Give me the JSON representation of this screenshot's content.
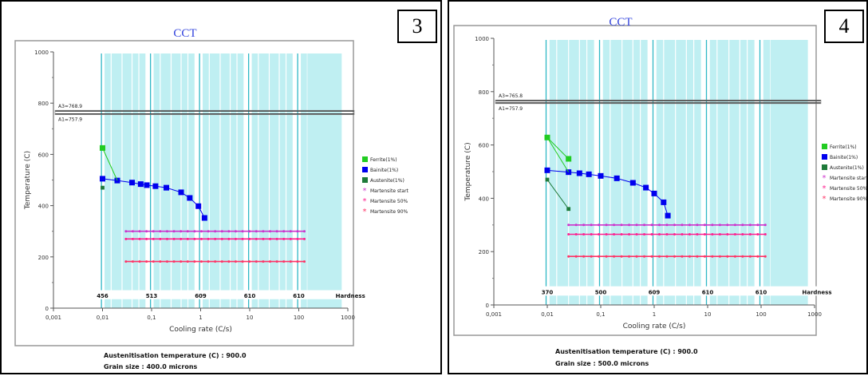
{
  "panels": [
    {
      "number": "3",
      "chart_data": {
        "type": "scatter",
        "title": "CCT",
        "xlabel": "Cooling rate (C/s)",
        "ylabel": "Temperature (C)",
        "xscale": "log",
        "xlim": [
          0.001,
          1000
        ],
        "ylim": [
          0,
          1000
        ],
        "x_ticks": [
          "0,001",
          "0,01",
          "0,1",
          "1",
          "10",
          "100",
          "1000"
        ],
        "y_ticks": [
          "0",
          "200",
          "400",
          "600",
          "800",
          "1000"
        ],
        "ae3_label": "A3=768.9",
        "ae3": 768.9,
        "ae1_label": "A1=757.9",
        "ae1": 757.9,
        "hardness_labels": [
          "456",
          "513",
          "609",
          "610",
          "610",
          "Hardness"
        ],
        "legend": [
          "Ferrite(1%)",
          "Bainite(1%)",
          "Austenite(1%)",
          "Martensite start",
          "Martensite 50%",
          "Martensite 90%"
        ],
        "series": [
          {
            "name": "Ferrite(1%)",
            "color": "#22cc22",
            "points": [
              [
                0.01,
                625
              ]
            ]
          },
          {
            "name": "Bainite(1%)",
            "color": "#0000ee",
            "points": [
              [
                0.01,
                505
              ],
              [
                0.02,
                498
              ],
              [
                0.04,
                490
              ],
              [
                0.06,
                484
              ],
              [
                0.08,
                480
              ],
              [
                0.12,
                476
              ],
              [
                0.2,
                470
              ],
              [
                0.4,
                452
              ],
              [
                0.6,
                430
              ],
              [
                0.9,
                398
              ],
              [
                1.2,
                352
              ]
            ]
          },
          {
            "name": "Austenite(1%)",
            "color": "#1e7a3a",
            "points": [
              [
                0.01,
                470
              ]
            ]
          },
          {
            "name": "Martensite start",
            "color": "#cc33cc",
            "points": [
              [
                0.03,
                300
              ],
              [
                130,
                300
              ]
            ]
          },
          {
            "name": "Martensite 50%",
            "color": "#ff1f8f",
            "points": [
              [
                0.03,
                270
              ],
              [
                130,
                270
              ]
            ]
          },
          {
            "name": "Martensite 90%",
            "color": "#ff3366",
            "points": [
              [
                0.03,
                182
              ],
              [
                130,
                182
              ]
            ]
          }
        ]
      },
      "caption_line1": "Austenitisation temperature (C) : 900.0",
      "caption_line2": "Grain size : 400.0 microns"
    },
    {
      "number": "4",
      "chart_data": {
        "type": "scatter",
        "title": "CCT",
        "xlabel": "Cooling rate (C/s)",
        "ylabel": "Temperature (C)",
        "xscale": "log",
        "xlim": [
          0.001,
          1000
        ],
        "ylim": [
          0,
          1000
        ],
        "x_ticks": [
          "0,001",
          "0,01",
          "0,1",
          "1",
          "10",
          "100",
          "1000"
        ],
        "y_ticks": [
          "0",
          "200",
          "400",
          "600",
          "800",
          "1000"
        ],
        "ae3_label": "A3=765.8",
        "ae3": 765.8,
        "ae1_label": "A1=757.9",
        "ae1": 757.9,
        "hardness_labels": [
          "370",
          "500",
          "609",
          "610",
          "610",
          "Hardness"
        ],
        "legend": [
          "Ferrite(1%)",
          "Bainite(1%)",
          "Austenite(1%)",
          "Martensite start",
          "Martensite 50%",
          "Martensite 90%"
        ],
        "series": [
          {
            "name": "Ferrite(1%)",
            "color": "#22cc22",
            "points": [
              [
                0.01,
                628
              ],
              [
                0.025,
                548
              ]
            ]
          },
          {
            "name": "Bainite(1%)",
            "color": "#0000ee",
            "points": [
              [
                0.01,
                505
              ],
              [
                0.025,
                498
              ],
              [
                0.04,
                494
              ],
              [
                0.06,
                490
              ],
              [
                0.1,
                484
              ],
              [
                0.2,
                475
              ],
              [
                0.4,
                458
              ],
              [
                0.7,
                440
              ],
              [
                1.0,
                418
              ],
              [
                1.5,
                385
              ],
              [
                1.8,
                335
              ]
            ]
          },
          {
            "name": "Austenite(1%)",
            "color": "#1e7a3a",
            "points": [
              [
                0.01,
                470
              ],
              [
                0.025,
                360
              ]
            ]
          },
          {
            "name": "Martensite start",
            "color": "#cc33cc",
            "points": [
              [
                0.025,
                300
              ],
              [
                120,
                300
              ]
            ]
          },
          {
            "name": "Martensite 50%",
            "color": "#ff1f8f",
            "points": [
              [
                0.025,
                265
              ],
              [
                120,
                265
              ]
            ]
          },
          {
            "name": "Martensite 90%",
            "color": "#ff3366",
            "points": [
              [
                0.025,
                182
              ],
              [
                120,
                182
              ]
            ]
          }
        ]
      },
      "caption_line1": "Austenitisation temperature (C) : 900.0",
      "caption_line2": "Grain size : 500.0 microns"
    }
  ]
}
